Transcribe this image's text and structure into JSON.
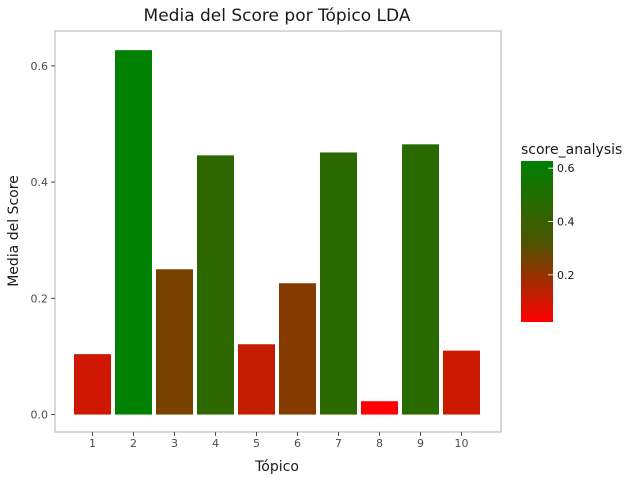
{
  "chart_data": {
    "type": "bar",
    "title": "Media del Score por Tópico LDA",
    "xlabel": "Tópico",
    "ylabel": "Media del Score",
    "categories": [
      "1",
      "2",
      "3",
      "4",
      "5",
      "6",
      "7",
      "8",
      "9",
      "10"
    ],
    "values": [
      0.104,
      0.627,
      0.25,
      0.446,
      0.121,
      0.226,
      0.451,
      0.023,
      0.465,
      0.11
    ],
    "ylim": [
      -0.03,
      0.66
    ],
    "yticks": [
      0.0,
      0.2,
      0.4,
      0.6
    ],
    "ytick_labels": [
      "0.0",
      "0.2",
      "0.4",
      "0.6"
    ],
    "grid": false,
    "legend": {
      "title": "score_analysis",
      "placement": "right",
      "ticks": [
        0.2,
        0.4,
        0.6
      ],
      "tick_labels": [
        "0.2",
        "0.4",
        "0.6"
      ],
      "range": [
        0.023,
        0.627
      ],
      "color_low": "#ff0000",
      "color_mid": "#4a5600",
      "color_high": "#008000"
    }
  }
}
